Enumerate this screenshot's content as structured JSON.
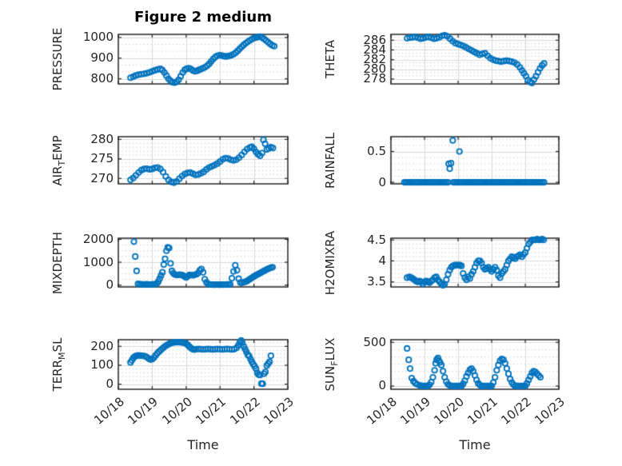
{
  "title": "Figure 2 medium",
  "xlabel": "Time",
  "marker_color": "#0072BD",
  "axis_color": "#262626",
  "grid_color": "#d9d9d9",
  "minor_grid_color": "#c9c9c9",
  "xticklabels": [
    "10/18",
    "10/19",
    "10/20",
    "10/21",
    "10/22",
    "10/23"
  ],
  "xlim_days": [
    0,
    5
  ],
  "chart_data": [
    {
      "type": "scatter",
      "row": 0,
      "col": 0,
      "ylabel_parts": [
        {
          "t": "PRESSURE",
          "sub": false
        }
      ],
      "ylim": [
        775,
        1015
      ],
      "yticks": [
        800,
        900,
        1000
      ],
      "minor_div": 3,
      "x": [
        0.36,
        0.44,
        0.52,
        0.6,
        0.68,
        0.76,
        0.84,
        0.92,
        1.0,
        1.08,
        1.16,
        1.24,
        1.3,
        1.36,
        1.42,
        1.48,
        1.54,
        1.6,
        1.66,
        1.72,
        1.78,
        1.84,
        1.9,
        1.96,
        2.02,
        2.08,
        2.14,
        2.2,
        2.26,
        2.32,
        2.38,
        2.44,
        2.5,
        2.56,
        2.62,
        2.68,
        2.74,
        2.8,
        2.86,
        2.92,
        2.98,
        3.04,
        3.1,
        3.16,
        3.22,
        3.28,
        3.34,
        3.4,
        3.46,
        3.52,
        3.58,
        3.64,
        3.7,
        3.76,
        3.82,
        3.88,
        3.94,
        4.0,
        4.06,
        4.12,
        4.18,
        4.24,
        4.3,
        4.36,
        4.42,
        4.48,
        4.54,
        4.6
      ],
      "y": [
        805,
        810,
        816,
        820,
        822,
        824,
        827,
        831,
        836,
        841,
        845,
        848,
        842,
        830,
        815,
        800,
        790,
        783,
        781,
        785,
        795,
        812,
        830,
        843,
        849,
        851,
        847,
        840,
        836,
        838,
        843,
        847,
        851,
        856,
        863,
        872,
        884,
        896,
        905,
        911,
        914,
        913,
        910,
        908,
        909,
        911,
        914,
        919,
        926,
        935,
        945,
        955,
        964,
        972,
        979,
        986,
        992,
        997,
        1000,
        1002,
        1004,
        1000,
        993,
        985,
        977,
        969,
        962,
        958
      ]
    },
    {
      "type": "scatter",
      "row": 0,
      "col": 1,
      "ylabel_parts": [
        {
          "t": "THETA",
          "sub": false
        }
      ],
      "ylim": [
        277,
        287.2
      ],
      "yticks": [
        278,
        280,
        282,
        284,
        286
      ],
      "minor_div": 3,
      "x": [
        0.48,
        0.56,
        0.64,
        0.72,
        0.8,
        0.88,
        0.96,
        1.04,
        1.12,
        1.2,
        1.28,
        1.36,
        1.44,
        1.52,
        1.6,
        1.68,
        1.76,
        1.84,
        1.92,
        2.0,
        2.08,
        2.16,
        2.24,
        2.32,
        2.4,
        2.48,
        2.56,
        2.64,
        2.72,
        2.8,
        2.88,
        2.96,
        3.04,
        3.12,
        3.2,
        3.28,
        3.36,
        3.44,
        3.52,
        3.6,
        3.68,
        3.76,
        3.84,
        3.9,
        3.96,
        4.02,
        4.08,
        4.14,
        4.2,
        4.26,
        4.32,
        4.38,
        4.44,
        4.5,
        4.56
      ],
      "y": [
        286.4,
        286.5,
        286.6,
        286.7,
        286.5,
        286.3,
        286.4,
        286.6,
        286.7,
        286.5,
        286.3,
        286.4,
        286.6,
        286.9,
        287.0,
        286.8,
        286.3,
        285.8,
        285.4,
        285.2,
        285.0,
        284.8,
        284.5,
        284.2,
        283.9,
        283.6,
        283.3,
        283.0,
        283.2,
        283.3,
        282.8,
        282.3,
        282.0,
        281.8,
        281.7,
        281.6,
        281.7,
        281.8,
        281.7,
        281.6,
        281.4,
        281.0,
        280.4,
        279.8,
        279.2,
        278.6,
        277.8,
        277.4,
        277.2,
        277.9,
        278.6,
        279.4,
        280.2,
        280.8,
        281.2
      ]
    },
    {
      "type": "scatter",
      "row": 1,
      "col": 0,
      "ylabel_parts": [
        {
          "t": "AIR",
          "sub": false
        },
        {
          "t": "T",
          "sub": true
        },
        {
          "t": "EMP",
          "sub": false
        }
      ],
      "ylim": [
        268.6,
        280.7
      ],
      "yticks": [
        270,
        275,
        280
      ],
      "minor_div": 5,
      "x": [
        0.36,
        0.44,
        0.52,
        0.6,
        0.68,
        0.76,
        0.84,
        0.92,
        1.0,
        1.08,
        1.16,
        1.24,
        1.32,
        1.4,
        1.48,
        1.56,
        1.64,
        1.72,
        1.8,
        1.88,
        1.96,
        2.04,
        2.12,
        2.2,
        2.28,
        2.36,
        2.44,
        2.52,
        2.6,
        2.68,
        2.76,
        2.84,
        2.92,
        3.0,
        3.08,
        3.16,
        3.24,
        3.32,
        3.4,
        3.48,
        3.56,
        3.64,
        3.72,
        3.8,
        3.88,
        3.94,
        4.0,
        4.06,
        4.12,
        4.18,
        4.24,
        4.28,
        4.33,
        4.38,
        4.44,
        4.5,
        4.56
      ],
      "y": [
        269.6,
        270.1,
        270.8,
        271.5,
        272.1,
        272.4,
        272.5,
        272.3,
        272.4,
        272.7,
        272.8,
        272.4,
        271.6,
        270.5,
        269.6,
        269.1,
        268.9,
        269.2,
        269.9,
        270.6,
        271.1,
        271.4,
        271.5,
        271.2,
        270.9,
        271.0,
        271.3,
        271.7,
        272.3,
        272.8,
        273.1,
        273.4,
        273.8,
        274.3,
        274.9,
        275.2,
        275.1,
        274.8,
        274.6,
        274.8,
        275.3,
        276.0,
        276.8,
        277.5,
        277.9,
        278.1,
        277.6,
        276.8,
        276.2,
        275.8,
        276.5,
        279.9,
        278.9,
        277.4,
        277.7,
        278.0,
        277.8
      ]
    },
    {
      "type": "scatter",
      "row": 1,
      "col": 1,
      "ylabel_parts": [
        {
          "t": "RAINFALL",
          "sub": false
        }
      ],
      "ylim": [
        -0.025,
        0.74
      ],
      "yticks": [
        0,
        0.5
      ],
      "minor_div": 5,
      "x": [
        0.4,
        0.45,
        0.5,
        0.55,
        0.6,
        0.65,
        0.7,
        0.75,
        0.8,
        0.85,
        0.9,
        0.95,
        1.0,
        1.05,
        1.1,
        1.15,
        1.2,
        1.25,
        1.3,
        1.35,
        1.4,
        1.45,
        1.5,
        1.55,
        1.6,
        1.65,
        1.7,
        1.72,
        1.75,
        1.79,
        1.84,
        1.86,
        1.91,
        1.96,
        2.01,
        2.04,
        2.06,
        2.11,
        2.16,
        2.21,
        2.26,
        2.31,
        2.36,
        2.41,
        2.46,
        2.51,
        2.56,
        2.61,
        2.66,
        2.71,
        2.76,
        2.81,
        2.86,
        2.91,
        2.96,
        3.01,
        3.06,
        3.11,
        3.16,
        3.21,
        3.26,
        3.31,
        3.36,
        3.41,
        3.46,
        3.51,
        3.56,
        3.61,
        3.66,
        3.71,
        3.76,
        3.81,
        3.86,
        3.91,
        3.96,
        4.01,
        4.06,
        4.11,
        4.16,
        4.21,
        4.26,
        4.31,
        4.36,
        4.41,
        4.46,
        4.51,
        4.56
      ],
      "y": [
        0,
        0,
        0,
        0,
        0,
        0,
        0,
        0,
        0,
        0,
        0,
        0,
        0,
        0,
        0,
        0,
        0,
        0,
        0,
        0,
        0,
        0,
        0,
        0,
        0,
        0,
        0,
        0.3,
        0.22,
        0.31,
        0.68,
        0,
        0,
        0,
        0,
        0.5,
        0,
        0,
        0,
        0,
        0,
        0,
        0,
        0,
        0,
        0,
        0,
        0,
        0,
        0,
        0,
        0,
        0,
        0,
        0,
        0,
        0,
        0,
        0,
        0,
        0,
        0,
        0,
        0,
        0,
        0,
        0,
        0,
        0,
        0,
        0,
        0,
        0,
        0,
        0,
        0,
        0,
        0,
        0,
        0,
        0,
        0,
        0,
        0,
        0,
        0,
        0
      ]
    },
    {
      "type": "scatter",
      "row": 2,
      "col": 0,
      "ylabel_parts": [
        {
          "t": "MIXDEPTH",
          "sub": false
        }
      ],
      "ylim": [
        -80,
        2050
      ],
      "yticks": [
        0,
        1000,
        2000
      ],
      "minor_div": 4,
      "x": [
        0.46,
        0.5,
        0.54,
        0.58,
        0.63,
        0.68,
        0.73,
        0.78,
        0.83,
        0.88,
        0.93,
        0.98,
        1.03,
        1.08,
        1.13,
        1.18,
        1.22,
        1.26,
        1.3,
        1.34,
        1.38,
        1.42,
        1.46,
        1.5,
        1.54,
        1.58,
        1.62,
        1.66,
        1.7,
        1.75,
        1.8,
        1.85,
        1.9,
        1.95,
        2.0,
        2.05,
        2.1,
        2.15,
        2.2,
        2.25,
        2.3,
        2.35,
        2.4,
        2.45,
        2.5,
        2.55,
        2.6,
        2.65,
        2.7,
        2.75,
        2.8,
        2.85,
        2.9,
        2.95,
        3.0,
        3.05,
        3.1,
        3.15,
        3.2,
        3.25,
        3.3,
        3.35,
        3.4,
        3.45,
        3.5,
        3.55,
        3.6,
        3.65,
        3.7,
        3.75,
        3.8,
        3.85,
        3.9,
        3.95,
        4.0,
        4.05,
        4.1,
        4.15,
        4.2,
        4.25,
        4.3,
        4.35,
        4.4,
        4.45,
        4.5,
        4.55
      ],
      "y": [
        1900,
        1250,
        620,
        60,
        40,
        35,
        30,
        30,
        35,
        30,
        25,
        30,
        35,
        40,
        60,
        150,
        280,
        420,
        560,
        900,
        1150,
        1500,
        1650,
        1620,
        950,
        620,
        520,
        470,
        450,
        440,
        460,
        450,
        430,
        380,
        330,
        390,
        450,
        440,
        430,
        450,
        470,
        520,
        640,
        700,
        560,
        260,
        120,
        50,
        30,
        25,
        20,
        20,
        25,
        20,
        20,
        25,
        20,
        25,
        30,
        30,
        40,
        300,
        600,
        870,
        650,
        280,
        110,
        100,
        130,
        150,
        180,
        230,
        280,
        330,
        380,
        420,
        460,
        500,
        540,
        580,
        620,
        660,
        700,
        730,
        760,
        780
      ]
    },
    {
      "type": "scatter",
      "row": 2,
      "col": 1,
      "ylabel_parts": [
        {
          "t": "H2OMIXRA",
          "sub": false
        }
      ],
      "ylim": [
        3.38,
        4.54
      ],
      "yticks": [
        3.5,
        4,
        4.5
      ],
      "minor_div": 5,
      "x": [
        0.48,
        0.55,
        0.6,
        0.65,
        0.7,
        0.75,
        0.8,
        0.85,
        0.9,
        0.95,
        1.0,
        1.05,
        1.1,
        1.15,
        1.2,
        1.25,
        1.3,
        1.35,
        1.4,
        1.45,
        1.5,
        1.55,
        1.6,
        1.65,
        1.7,
        1.75,
        1.8,
        1.85,
        1.9,
        1.95,
        2.0,
        2.05,
        2.1,
        2.15,
        2.2,
        2.25,
        2.3,
        2.35,
        2.4,
        2.45,
        2.5,
        2.55,
        2.6,
        2.65,
        2.7,
        2.75,
        2.8,
        2.85,
        2.9,
        2.95,
        3.0,
        3.05,
        3.1,
        3.15,
        3.2,
        3.25,
        3.3,
        3.35,
        3.4,
        3.45,
        3.5,
        3.55,
        3.6,
        3.65,
        3.7,
        3.75,
        3.8,
        3.85,
        3.9,
        3.95,
        4.0,
        4.05,
        4.1,
        4.15,
        4.2,
        4.25,
        4.3,
        4.35,
        4.4,
        4.45,
        4.5,
        4.55
      ],
      "y": [
        3.6,
        3.62,
        3.6,
        3.58,
        3.55,
        3.52,
        3.5,
        3.52,
        3.5,
        3.45,
        3.5,
        3.52,
        3.5,
        3.48,
        3.52,
        3.55,
        3.6,
        3.62,
        3.55,
        3.5,
        3.45,
        3.42,
        3.45,
        3.55,
        3.68,
        3.78,
        3.85,
        3.88,
        3.9,
        3.9,
        3.9,
        3.9,
        3.88,
        3.7,
        3.6,
        3.55,
        3.62,
        3.58,
        3.68,
        3.75,
        3.85,
        3.95,
        4.0,
        4.0,
        3.95,
        3.85,
        3.8,
        3.82,
        3.85,
        3.8,
        3.75,
        3.8,
        3.85,
        3.78,
        3.65,
        3.6,
        3.7,
        3.75,
        3.8,
        3.9,
        4.0,
        4.05,
        4.1,
        4.08,
        4.05,
        4.1,
        4.12,
        4.15,
        4.1,
        4.15,
        4.2,
        4.3,
        4.4,
        4.45,
        4.5,
        4.5,
        4.5,
        4.52,
        4.5,
        4.5,
        4.52,
        4.5
      ]
    },
    {
      "type": "scatter",
      "row": 3,
      "col": 0,
      "ylabel_parts": [
        {
          "t": "TERR",
          "sub": false
        },
        {
          "t": "M",
          "sub": true
        },
        {
          "t": "SL",
          "sub": false
        }
      ],
      "ylim": [
        -27,
        235
      ],
      "yticks": [
        0,
        100,
        200
      ],
      "minor_div": 5,
      "x": [
        0.36,
        0.4,
        0.44,
        0.48,
        0.52,
        0.56,
        0.6,
        0.66,
        0.72,
        0.78,
        0.84,
        0.9,
        0.95,
        1.0,
        1.05,
        1.1,
        1.15,
        1.2,
        1.25,
        1.3,
        1.35,
        1.4,
        1.45,
        1.5,
        1.55,
        1.6,
        1.65,
        1.7,
        1.75,
        1.8,
        1.85,
        1.9,
        1.95,
        2.0,
        2.05,
        2.1,
        2.15,
        2.2,
        2.25,
        2.3,
        2.37,
        2.44,
        2.51,
        2.58,
        2.65,
        2.72,
        2.79,
        2.86,
        2.93,
        3.0,
        3.07,
        3.14,
        3.21,
        3.28,
        3.35,
        3.42,
        3.49,
        3.54,
        3.58,
        3.62,
        3.66,
        3.7,
        3.74,
        3.78,
        3.82,
        3.86,
        3.9,
        3.94,
        3.98,
        4.02,
        4.06,
        4.1,
        4.14,
        4.18,
        4.22,
        4.26,
        4.3,
        4.34,
        4.38,
        4.42,
        4.46,
        4.5
      ],
      "y": [
        115,
        126,
        138,
        145,
        149,
        151,
        152,
        151,
        150,
        148,
        143,
        135,
        130,
        132,
        140,
        152,
        163,
        172,
        180,
        188,
        196,
        203,
        208,
        213,
        217,
        220,
        221,
        222,
        222,
        222,
        221,
        220,
        218,
        214,
        207,
        198,
        190,
        184,
        183,
        185,
        186,
        185,
        184,
        185,
        186,
        185,
        184,
        185,
        186,
        185,
        184,
        185,
        186,
        185,
        184,
        185,
        192,
        205,
        222,
        231,
        218,
        200,
        185,
        170,
        155,
        148,
        132,
        118,
        105,
        95,
        82,
        60,
        50,
        48,
        3,
        2,
        55,
        65,
        98,
        108,
        118,
        150
      ]
    },
    {
      "type": "scatter",
      "row": 3,
      "col": 1,
      "ylabel_parts": [
        {
          "t": "SUN",
          "sub": false
        },
        {
          "t": "F",
          "sub": true
        },
        {
          "t": "LUX",
          "sub": false
        }
      ],
      "ylim": [
        -37,
        530
      ],
      "yticks": [
        0,
        500
      ],
      "minor_div": 6,
      "x": [
        0.48,
        0.53,
        0.57,
        0.62,
        0.67,
        0.72,
        0.78,
        0.85,
        0.9,
        0.95,
        1.0,
        1.05,
        1.1,
        1.15,
        1.2,
        1.25,
        1.3,
        1.33,
        1.36,
        1.4,
        1.43,
        1.46,
        1.5,
        1.55,
        1.6,
        1.65,
        1.7,
        1.75,
        1.8,
        1.85,
        1.9,
        1.95,
        2.0,
        2.05,
        2.1,
        2.15,
        2.2,
        2.25,
        2.3,
        2.35,
        2.4,
        2.45,
        2.5,
        2.55,
        2.6,
        2.65,
        2.7,
        2.75,
        2.8,
        2.85,
        2.9,
        2.95,
        3.0,
        3.05,
        3.1,
        3.15,
        3.2,
        3.25,
        3.3,
        3.35,
        3.4,
        3.45,
        3.5,
        3.55,
        3.6,
        3.65,
        3.7,
        3.75,
        3.8,
        3.85,
        3.9,
        3.95,
        4.0,
        4.05,
        4.1,
        4.15,
        4.2,
        4.25,
        4.3,
        4.35,
        4.4,
        4.45
      ],
      "y": [
        430,
        300,
        200,
        90,
        55,
        35,
        20,
        8,
        3,
        0,
        0,
        0,
        0,
        15,
        45,
        100,
        180,
        260,
        300,
        320,
        290,
        270,
        240,
        170,
        100,
        50,
        20,
        8,
        0,
        0,
        0,
        0,
        0,
        0,
        0,
        25,
        60,
        110,
        150,
        185,
        200,
        170,
        120,
        70,
        30,
        10,
        0,
        0,
        0,
        0,
        0,
        0,
        0,
        40,
        100,
        180,
        240,
        290,
        310,
        300,
        260,
        200,
        140,
        80,
        40,
        15,
        0,
        0,
        0,
        0,
        0,
        0,
        0,
        30,
        70,
        110,
        150,
        170,
        160,
        140,
        120,
        100
      ]
    }
  ]
}
